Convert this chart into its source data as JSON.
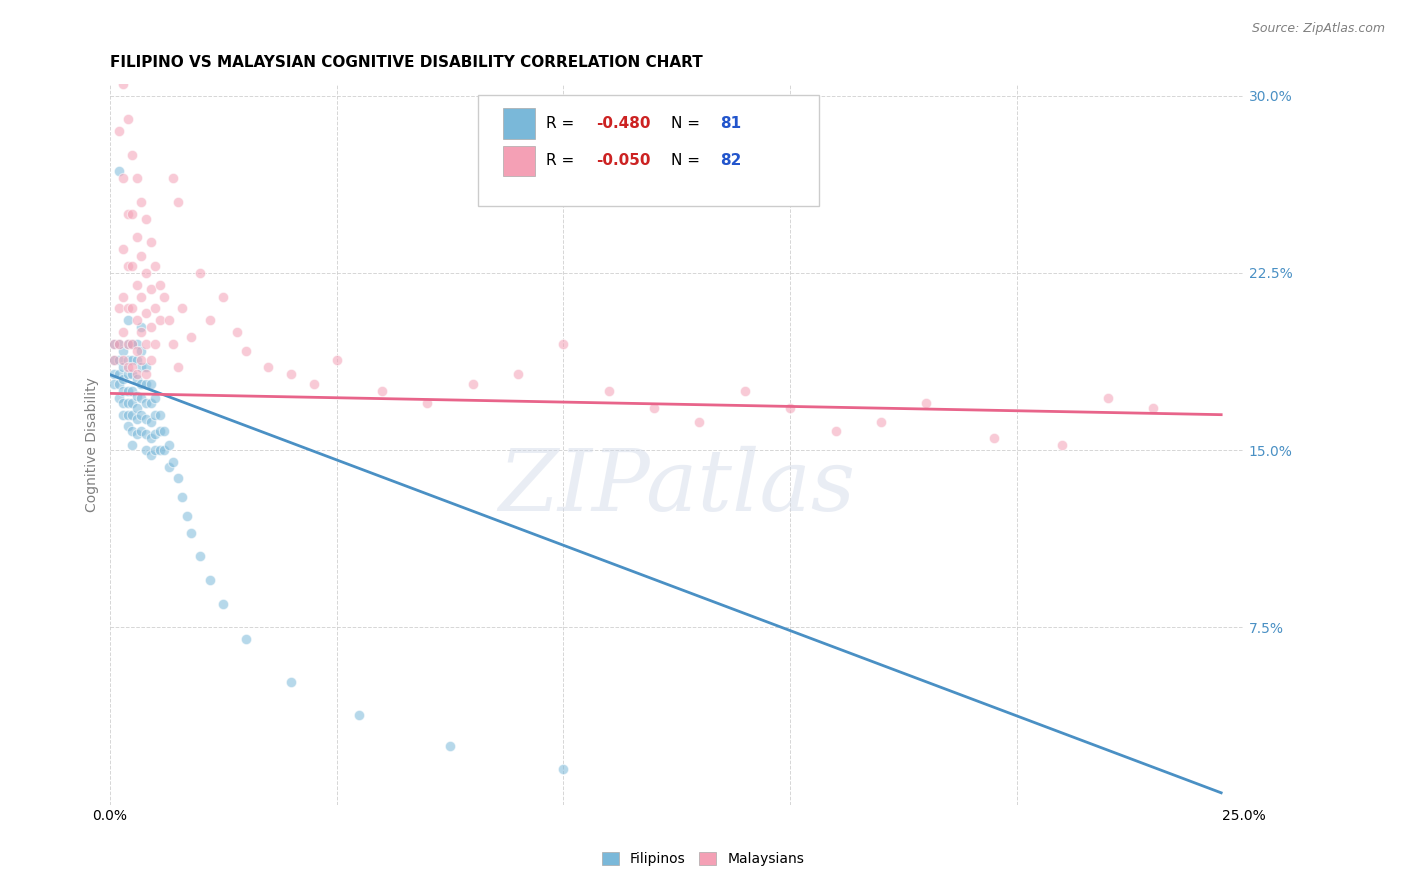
{
  "title": "FILIPINO VS MALAYSIAN COGNITIVE DISABILITY CORRELATION CHART",
  "source": "Source: ZipAtlas.com",
  "ylabel": "Cognitive Disability",
  "xlim": [
    0.0,
    0.25
  ],
  "ylim": [
    0.0,
    0.305
  ],
  "yticks": [
    0.0,
    0.075,
    0.15,
    0.225,
    0.3
  ],
  "yticklabels_right": [
    "",
    "7.5%",
    "15.0%",
    "22.5%",
    "30.0%"
  ],
  "watermark": "ZIPatlas",
  "filipino_color": "#7ab8d9",
  "malaysian_color": "#f4a0b5",
  "filipino_line_color": "#4a90c4",
  "malaysian_line_color": "#e8648a",
  "R_filipino": -0.48,
  "N_filipino": 81,
  "R_malaysian": -0.05,
  "N_malaysian": 82,
  "legend_R_color": "#cc2222",
  "legend_N_color": "#2255cc",
  "background_color": "#ffffff",
  "grid_color": "#cccccc",
  "right_tick_color": "#4a90c4",
  "fil_line_x0": 0.0,
  "fil_line_y0": 0.182,
  "fil_line_x1": 0.245,
  "fil_line_y1": 0.005,
  "mal_line_x0": 0.0,
  "mal_line_y0": 0.174,
  "mal_line_x1": 0.245,
  "mal_line_y1": 0.165,
  "filipino_points": [
    [
      0.001,
      0.195
    ],
    [
      0.001,
      0.188
    ],
    [
      0.001,
      0.182
    ],
    [
      0.001,
      0.178
    ],
    [
      0.002,
      0.268
    ],
    [
      0.002,
      0.195
    ],
    [
      0.002,
      0.188
    ],
    [
      0.002,
      0.182
    ],
    [
      0.002,
      0.178
    ],
    [
      0.002,
      0.172
    ],
    [
      0.003,
      0.192
    ],
    [
      0.003,
      0.185
    ],
    [
      0.003,
      0.18
    ],
    [
      0.003,
      0.175
    ],
    [
      0.003,
      0.17
    ],
    [
      0.003,
      0.165
    ],
    [
      0.004,
      0.205
    ],
    [
      0.004,
      0.195
    ],
    [
      0.004,
      0.188
    ],
    [
      0.004,
      0.182
    ],
    [
      0.004,
      0.175
    ],
    [
      0.004,
      0.17
    ],
    [
      0.004,
      0.165
    ],
    [
      0.004,
      0.16
    ],
    [
      0.005,
      0.195
    ],
    [
      0.005,
      0.188
    ],
    [
      0.005,
      0.182
    ],
    [
      0.005,
      0.175
    ],
    [
      0.005,
      0.17
    ],
    [
      0.005,
      0.165
    ],
    [
      0.005,
      0.158
    ],
    [
      0.005,
      0.152
    ],
    [
      0.006,
      0.195
    ],
    [
      0.006,
      0.188
    ],
    [
      0.006,
      0.18
    ],
    [
      0.006,
      0.173
    ],
    [
      0.006,
      0.168
    ],
    [
      0.006,
      0.163
    ],
    [
      0.006,
      0.157
    ],
    [
      0.007,
      0.202
    ],
    [
      0.007,
      0.192
    ],
    [
      0.007,
      0.185
    ],
    [
      0.007,
      0.178
    ],
    [
      0.007,
      0.172
    ],
    [
      0.007,
      0.165
    ],
    [
      0.007,
      0.158
    ],
    [
      0.008,
      0.185
    ],
    [
      0.008,
      0.178
    ],
    [
      0.008,
      0.17
    ],
    [
      0.008,
      0.163
    ],
    [
      0.008,
      0.157
    ],
    [
      0.008,
      0.15
    ],
    [
      0.009,
      0.178
    ],
    [
      0.009,
      0.17
    ],
    [
      0.009,
      0.162
    ],
    [
      0.009,
      0.155
    ],
    [
      0.009,
      0.148
    ],
    [
      0.01,
      0.172
    ],
    [
      0.01,
      0.165
    ],
    [
      0.01,
      0.157
    ],
    [
      0.01,
      0.15
    ],
    [
      0.011,
      0.165
    ],
    [
      0.011,
      0.158
    ],
    [
      0.011,
      0.15
    ],
    [
      0.012,
      0.158
    ],
    [
      0.012,
      0.15
    ],
    [
      0.013,
      0.152
    ],
    [
      0.013,
      0.143
    ],
    [
      0.014,
      0.145
    ],
    [
      0.015,
      0.138
    ],
    [
      0.016,
      0.13
    ],
    [
      0.017,
      0.122
    ],
    [
      0.018,
      0.115
    ],
    [
      0.02,
      0.105
    ],
    [
      0.022,
      0.095
    ],
    [
      0.025,
      0.085
    ],
    [
      0.03,
      0.07
    ],
    [
      0.04,
      0.052
    ],
    [
      0.055,
      0.038
    ],
    [
      0.075,
      0.025
    ],
    [
      0.1,
      0.015
    ]
  ],
  "malaysian_points": [
    [
      0.001,
      0.195
    ],
    [
      0.001,
      0.188
    ],
    [
      0.002,
      0.285
    ],
    [
      0.002,
      0.21
    ],
    [
      0.002,
      0.195
    ],
    [
      0.003,
      0.305
    ],
    [
      0.003,
      0.265
    ],
    [
      0.003,
      0.235
    ],
    [
      0.003,
      0.215
    ],
    [
      0.003,
      0.2
    ],
    [
      0.003,
      0.188
    ],
    [
      0.004,
      0.29
    ],
    [
      0.004,
      0.25
    ],
    [
      0.004,
      0.228
    ],
    [
      0.004,
      0.21
    ],
    [
      0.004,
      0.195
    ],
    [
      0.004,
      0.185
    ],
    [
      0.005,
      0.275
    ],
    [
      0.005,
      0.25
    ],
    [
      0.005,
      0.228
    ],
    [
      0.005,
      0.21
    ],
    [
      0.005,
      0.195
    ],
    [
      0.005,
      0.185
    ],
    [
      0.006,
      0.265
    ],
    [
      0.006,
      0.24
    ],
    [
      0.006,
      0.22
    ],
    [
      0.006,
      0.205
    ],
    [
      0.006,
      0.192
    ],
    [
      0.006,
      0.182
    ],
    [
      0.007,
      0.255
    ],
    [
      0.007,
      0.232
    ],
    [
      0.007,
      0.215
    ],
    [
      0.007,
      0.2
    ],
    [
      0.007,
      0.188
    ],
    [
      0.008,
      0.248
    ],
    [
      0.008,
      0.225
    ],
    [
      0.008,
      0.208
    ],
    [
      0.008,
      0.195
    ],
    [
      0.008,
      0.182
    ],
    [
      0.009,
      0.238
    ],
    [
      0.009,
      0.218
    ],
    [
      0.009,
      0.202
    ],
    [
      0.009,
      0.188
    ],
    [
      0.01,
      0.228
    ],
    [
      0.01,
      0.21
    ],
    [
      0.01,
      0.195
    ],
    [
      0.011,
      0.22
    ],
    [
      0.011,
      0.205
    ],
    [
      0.012,
      0.215
    ],
    [
      0.013,
      0.205
    ],
    [
      0.014,
      0.265
    ],
    [
      0.014,
      0.195
    ],
    [
      0.015,
      0.255
    ],
    [
      0.015,
      0.185
    ],
    [
      0.016,
      0.21
    ],
    [
      0.018,
      0.198
    ],
    [
      0.02,
      0.225
    ],
    [
      0.022,
      0.205
    ],
    [
      0.025,
      0.215
    ],
    [
      0.028,
      0.2
    ],
    [
      0.03,
      0.192
    ],
    [
      0.035,
      0.185
    ],
    [
      0.04,
      0.182
    ],
    [
      0.045,
      0.178
    ],
    [
      0.05,
      0.188
    ],
    [
      0.06,
      0.175
    ],
    [
      0.07,
      0.17
    ],
    [
      0.08,
      0.178
    ],
    [
      0.09,
      0.182
    ],
    [
      0.1,
      0.195
    ],
    [
      0.11,
      0.175
    ],
    [
      0.12,
      0.168
    ],
    [
      0.13,
      0.162
    ],
    [
      0.14,
      0.175
    ],
    [
      0.15,
      0.168
    ],
    [
      0.16,
      0.158
    ],
    [
      0.17,
      0.162
    ],
    [
      0.18,
      0.17
    ],
    [
      0.195,
      0.155
    ],
    [
      0.21,
      0.152
    ],
    [
      0.22,
      0.172
    ],
    [
      0.23,
      0.168
    ]
  ],
  "marker_size": 55,
  "marker_alpha": 0.55,
  "tick_fontsize": 10,
  "legend_fontsize": 10,
  "source_fontsize": 9,
  "title_fontsize": 11
}
